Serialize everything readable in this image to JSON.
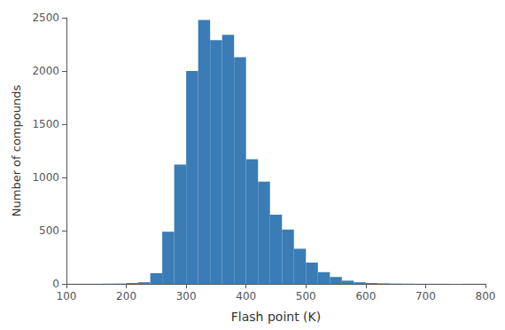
{
  "chart_data": {
    "type": "histogram",
    "bins": [
      100,
      120,
      140,
      160,
      180,
      200,
      220,
      240,
      260,
      280,
      300,
      320,
      340,
      360,
      380,
      400,
      420,
      440,
      460,
      480,
      500,
      520,
      540,
      560,
      580,
      600,
      620,
      640,
      660,
      680,
      700,
      720,
      740,
      760,
      780,
      800
    ],
    "values": [
      1,
      1,
      1,
      2,
      3,
      8,
      15,
      100,
      490,
      1120,
      2000,
      2480,
      2290,
      2340,
      2130,
      1170,
      960,
      650,
      510,
      330,
      200,
      110,
      65,
      30,
      15,
      8,
      5,
      3,
      2,
      1,
      1,
      1,
      1,
      1,
      1
    ],
    "color": "#3a7cb5",
    "xlabel": "Flash point (K)",
    "ylabel": "Number of compounds",
    "xlim": [
      100,
      800
    ],
    "ylim": [
      0,
      2500
    ],
    "xticks": [
      100,
      200,
      300,
      400,
      500,
      600,
      700,
      800
    ],
    "yticks": [
      0,
      500,
      1000,
      1500,
      2000,
      2500
    ],
    "grid": false
  }
}
